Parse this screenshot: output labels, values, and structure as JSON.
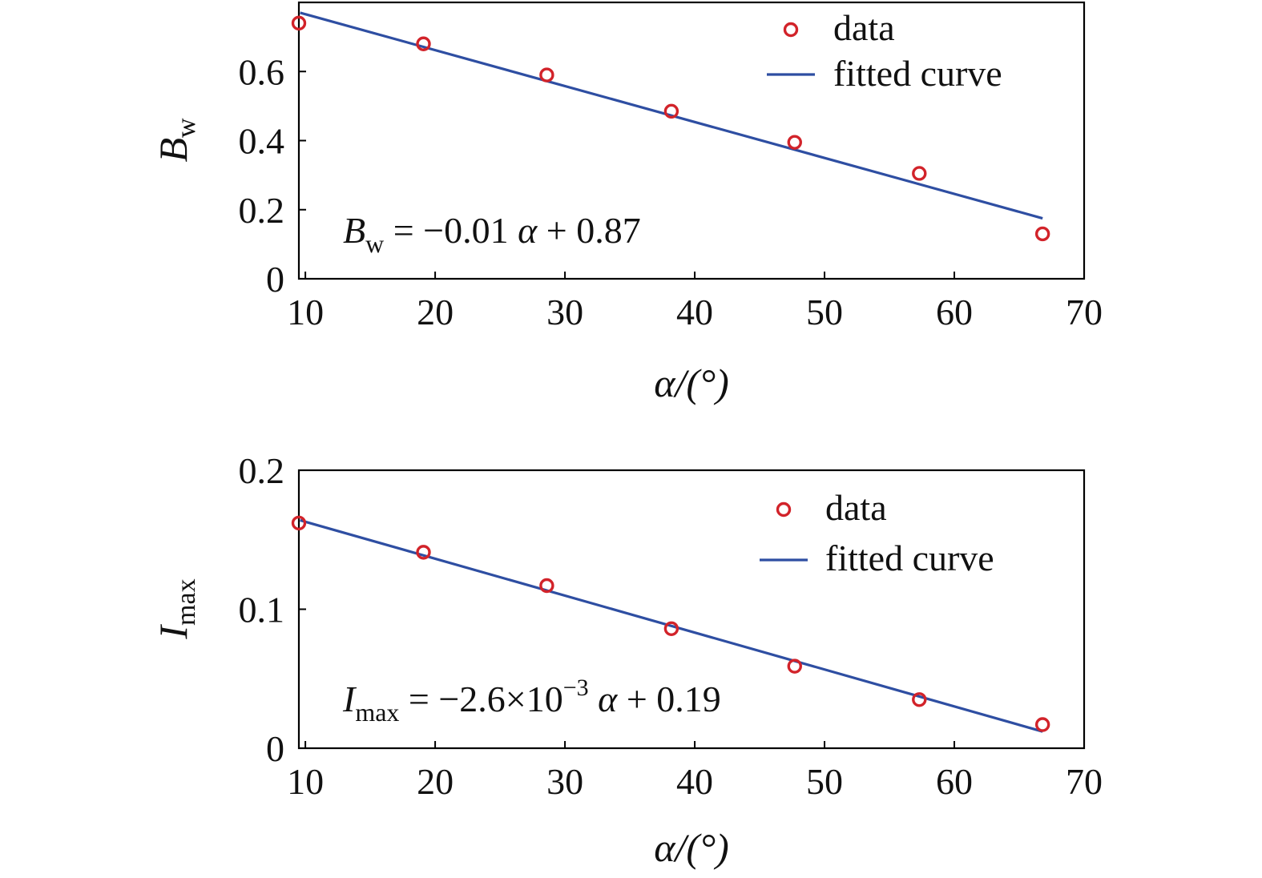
{
  "chart_data": [
    {
      "type": "scatter",
      "xlabel": "α/(°)",
      "ylabel_main": "B",
      "ylabel_sub": "w",
      "xlim": [
        9.5,
        70
      ],
      "ylim": [
        0,
        0.8
      ],
      "xticks": [
        10,
        20,
        30,
        40,
        50,
        60,
        70
      ],
      "xtick_labels": [
        "10",
        "20",
        "30",
        "40",
        "50",
        "60",
        "70"
      ],
      "yticks": [
        0,
        0.2,
        0.4,
        0.6
      ],
      "ytick_labels": [
        "0",
        "0.2",
        "0.4",
        "0.6"
      ],
      "series": [
        {
          "name": "data",
          "kind": "points",
          "color": "#d2232a",
          "x": [
            9.5,
            19.1,
            28.6,
            38.2,
            47.7,
            57.3,
            66.8
          ],
          "y": [
            0.74,
            0.68,
            0.59,
            0.485,
            0.395,
            0.305,
            0.13
          ]
        },
        {
          "name": "fitted curve",
          "kind": "line",
          "color": "#2e4ea2",
          "x": [
            9.6,
            66.8
          ],
          "y": [
            0.77,
            0.175
          ]
        }
      ],
      "equation": {
        "lhs_main": "B",
        "lhs_sub": "w",
        "rhs_prefix": " = −0.01 ",
        "rhs_var": "α",
        "rhs_suffix": "  + 0.87"
      },
      "legend_position": "top-right",
      "grid": false
    },
    {
      "type": "scatter",
      "xlabel": "α/(°)",
      "ylabel_main": "I",
      "ylabel_sub": "max",
      "xlim": [
        9.5,
        70
      ],
      "ylim": [
        0,
        0.2
      ],
      "xticks": [
        10,
        20,
        30,
        40,
        50,
        60,
        70
      ],
      "xtick_labels": [
        "10",
        "20",
        "30",
        "40",
        "50",
        "60",
        "70"
      ],
      "yticks": [
        0,
        0.1,
        0.2
      ],
      "ytick_labels": [
        "0",
        "0.1",
        "0.2"
      ],
      "series": [
        {
          "name": "data",
          "kind": "points",
          "color": "#d2232a",
          "x": [
            9.5,
            19.1,
            28.6,
            38.2,
            47.7,
            57.3,
            66.8
          ],
          "y": [
            0.162,
            0.141,
            0.117,
            0.086,
            0.059,
            0.035,
            0.017
          ]
        },
        {
          "name": "fitted curve",
          "kind": "line",
          "color": "#2e4ea2",
          "x": [
            9.6,
            66.8
          ],
          "y": [
            0.164,
            0.012
          ]
        }
      ],
      "equation": {
        "lhs_main": "I",
        "lhs_sub": "max",
        "rhs_prefix": " = −2.6×10",
        "rhs_sup": "−3",
        "rhs_var": " α",
        "rhs_suffix": " + 0.19"
      },
      "legend_position": "top-right",
      "grid": false
    }
  ]
}
